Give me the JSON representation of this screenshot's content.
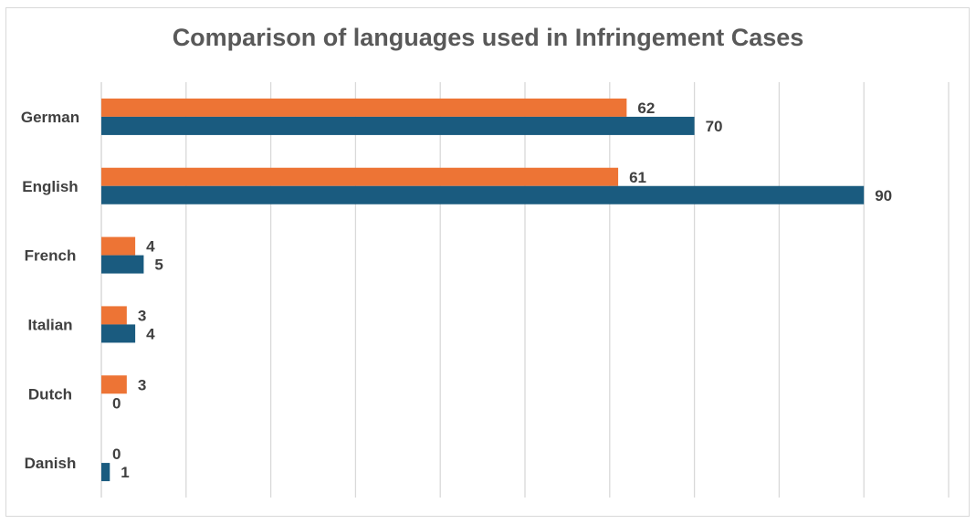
{
  "chart_data": {
    "type": "bar",
    "orientation": "horizontal",
    "title": "Comparison of languages used in Infringement Cases",
    "categories": [
      "German",
      "English",
      "French",
      "Italian",
      "Dutch",
      "Danish"
    ],
    "series": [
      {
        "color": "#ed7435",
        "values": [
          62,
          61,
          4,
          3,
          3,
          0
        ]
      },
      {
        "color": "#1a5b7f",
        "values": [
          70,
          90,
          5,
          4,
          0,
          1
        ]
      }
    ],
    "xlim": [
      0,
      100
    ],
    "grid": true,
    "legend": "none",
    "data_labels": true
  }
}
